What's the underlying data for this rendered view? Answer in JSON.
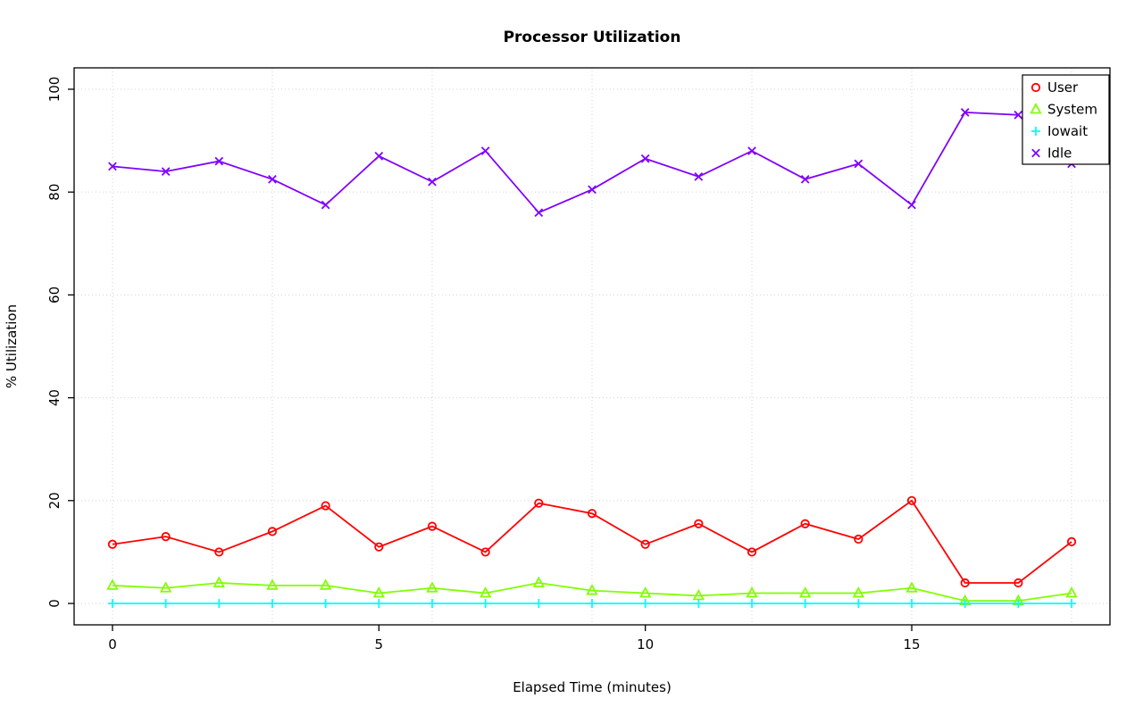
{
  "chart_data": {
    "type": "line",
    "title": "Processor Utilization",
    "xlabel": "Elapsed Time (minutes)",
    "ylabel": "% Utilization",
    "x": [
      0,
      1,
      2,
      3,
      4,
      5,
      6,
      7,
      8,
      9,
      10,
      11,
      12,
      13,
      14,
      15,
      16,
      17,
      18
    ],
    "series": [
      {
        "name": "User",
        "color": "#FF0000",
        "marker": "circle",
        "values": [
          11.5,
          13,
          10,
          14,
          19,
          11,
          15,
          10,
          19.5,
          17.5,
          11.5,
          15.5,
          10,
          15.5,
          12.5,
          20,
          4,
          4,
          12
        ]
      },
      {
        "name": "System",
        "color": "#80FF00",
        "marker": "triangle",
        "values": [
          3.5,
          3,
          4,
          3.5,
          3.5,
          2,
          3,
          2,
          4,
          2.5,
          2,
          1.5,
          2,
          2,
          2,
          3,
          0.5,
          0.5,
          2
        ]
      },
      {
        "name": "Iowait",
        "color": "#00FFFF",
        "marker": "plus",
        "values": [
          0,
          0,
          0,
          0,
          0,
          0,
          0,
          0,
          0,
          0,
          0,
          0,
          0,
          0,
          0,
          0,
          0,
          0,
          0
        ]
      },
      {
        "name": "Idle",
        "color": "#8000FF",
        "marker": "cross",
        "values": [
          85,
          84,
          86,
          82.5,
          77.5,
          87,
          82,
          88,
          76,
          80.5,
          86.5,
          83,
          88,
          82.5,
          85.5,
          77.5,
          95.5,
          95,
          85.5
        ]
      }
    ],
    "xticks": [
      0,
      5,
      10,
      15
    ],
    "yticks": [
      0,
      20,
      40,
      60,
      80,
      100
    ],
    "xlim": [
      -0.72,
      18.72
    ],
    "ylim": [
      -4.16,
      104.16
    ],
    "grid": {
      "on": true,
      "color": "#D3D3D3",
      "style": "dotted",
      "xlines": [
        0,
        3,
        6,
        9,
        12,
        15,
        18
      ],
      "ylines": [
        0,
        20,
        40,
        60,
        80,
        100
      ]
    },
    "legend": {
      "position": "topright",
      "entries": [
        "User",
        "System",
        "Iowait",
        "Idle"
      ]
    },
    "axis_color": "#000000",
    "background": "#FFFFFF"
  }
}
